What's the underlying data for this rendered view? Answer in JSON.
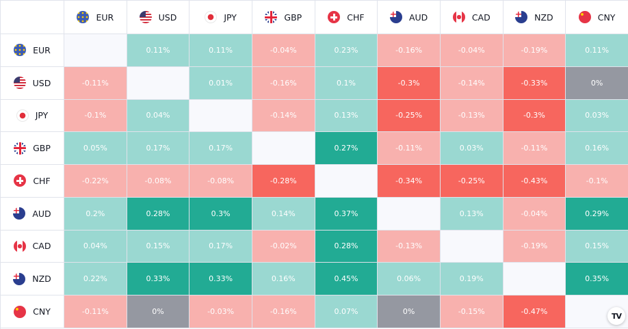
{
  "heatmap": {
    "currencies": [
      "EUR",
      "USD",
      "JPY",
      "GBP",
      "CHF",
      "AUD",
      "CAD",
      "NZD",
      "CNY"
    ],
    "flag_icons": [
      "eu-flag-icon",
      "us-flag-icon",
      "japan-flag-icon",
      "uk-flag-icon",
      "swiss-flag-icon",
      "australia-flag-icon",
      "canada-flag-icon",
      "new-zealand-flag-icon",
      "china-flag-icon"
    ],
    "values": [
      [
        null,
        0.11,
        0.11,
        -0.04,
        0.23,
        -0.16,
        -0.04,
        -0.19,
        0.11
      ],
      [
        -0.11,
        null,
        0.01,
        -0.16,
        0.1,
        -0.3,
        -0.14,
        -0.33,
        0
      ],
      [
        -0.1,
        0.04,
        null,
        -0.14,
        0.13,
        -0.25,
        -0.13,
        -0.3,
        0.03
      ],
      [
        0.05,
        0.17,
        0.17,
        null,
        0.27,
        -0.11,
        0.03,
        -0.11,
        0.16
      ],
      [
        -0.22,
        -0.08,
        -0.08,
        -0.28,
        null,
        -0.34,
        -0.25,
        -0.43,
        -0.1
      ],
      [
        0.2,
        0.28,
        0.3,
        0.14,
        0.37,
        null,
        0.13,
        -0.04,
        0.29
      ],
      [
        0.04,
        0.15,
        0.17,
        -0.02,
        0.28,
        -0.13,
        null,
        -0.19,
        0.15
      ],
      [
        0.22,
        0.33,
        0.33,
        0.16,
        0.45,
        0.06,
        0.19,
        null,
        0.35
      ],
      [
        -0.11,
        0,
        -0.03,
        -0.16,
        0.07,
        0,
        -0.15,
        -0.47,
        null
      ]
    ],
    "value_suffix": "%",
    "colors": {
      "strong_positive": "#22ab94",
      "positive": "#9ad8d1",
      "neutral": "#9598a1",
      "negative": "#f8b1ae",
      "strong_negative": "#f7665e",
      "diagonal": "#f8f9fd",
      "grid": "#e0e3eb"
    },
    "thresholds": {
      "strong": 0.25
    }
  },
  "branding": {
    "logo_text": "TV"
  }
}
